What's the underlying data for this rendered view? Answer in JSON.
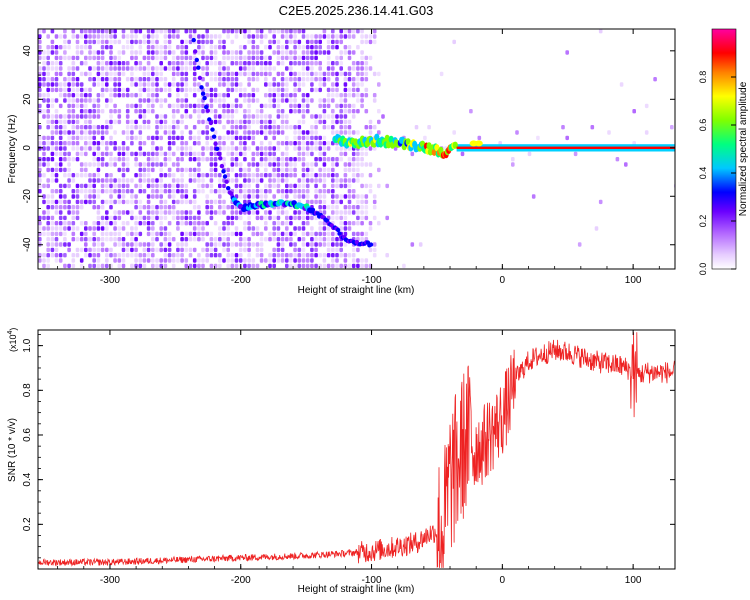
{
  "title": "C2E5.2025.236.14.41.G03",
  "chart_data": [
    {
      "type": "heatmap",
      "title": "C2E5.2025.236.14.41.G03",
      "xlabel": "Height of straight line (km)",
      "ylabel": "Frequency (Hz)",
      "xlim": [
        -355,
        132
      ],
      "ylim": [
        -50,
        49
      ],
      "xticks": [
        -300,
        -200,
        -100,
        0,
        100
      ],
      "yticks": [
        -40,
        -20,
        0,
        20,
        40
      ],
      "colorbar": {
        "label": "Normalized spectral amplitude",
        "ticks": [
          "0.0",
          "0.2",
          "0.4",
          "0.6",
          "0.8"
        ],
        "range": [
          0,
          1
        ],
        "colors": [
          "#ffffff",
          "#e6ccff",
          "#b266ff",
          "#6a00ff",
          "#0000ff",
          "#00c8ff",
          "#00ff80",
          "#80ff00",
          "#ffff00",
          "#ff8000",
          "#ff0000",
          "#ff00a0"
        ]
      },
      "ridge": [
        {
          "x": -236,
          "y": 44
        },
        {
          "x": -230,
          "y": 25
        },
        {
          "x": -224,
          "y": 12
        },
        {
          "x": -218,
          "y": 0
        },
        {
          "x": -213,
          "y": -10
        },
        {
          "x": -208,
          "y": -19
        },
        {
          "x": -200,
          "y": -25
        },
        {
          "x": -190,
          "y": -24
        },
        {
          "x": -175,
          "y": -23
        },
        {
          "x": -160,
          "y": -23
        },
        {
          "x": -148,
          "y": -25
        },
        {
          "x": -140,
          "y": -28
        },
        {
          "x": -130,
          "y": -32
        },
        {
          "x": -120,
          "y": -38
        },
        {
          "x": -100,
          "y": -40
        }
      ],
      "carrier": [
        {
          "x": -128,
          "y": 3
        },
        {
          "x": -110,
          "y": 2
        },
        {
          "x": -95,
          "y": 3
        },
        {
          "x": -80,
          "y": 2
        },
        {
          "x": -65,
          "y": 1
        },
        {
          "x": -50,
          "y": -1
        },
        {
          "x": -42,
          "y": -2
        },
        {
          "x": -35,
          "y": 0
        },
        {
          "x": -25,
          "y": 1
        },
        {
          "x": -15,
          "y": 0
        },
        {
          "x": 0,
          "y": 0
        },
        {
          "x": 60,
          "y": 0
        },
        {
          "x": 132,
          "y": 0
        }
      ]
    },
    {
      "type": "line",
      "xlabel": "Height of straight line (km)",
      "ylabel": "SNR (10 * v/v)",
      "y_multiplier": "(x10^4)",
      "xlim": [
        -355,
        132
      ],
      "ylim": [
        0,
        1.07
      ],
      "xticks": [
        -300,
        -200,
        -100,
        0,
        100
      ],
      "yticks": [
        0.2,
        0.4,
        0.6,
        0.8,
        1.0
      ],
      "line_color": "#ee2222",
      "series": [
        {
          "x": [
            -355,
            -300,
            -250,
            -200,
            -150,
            -120,
            -100,
            -80,
            -65,
            -55,
            -45,
            -40,
            -35,
            -30,
            -25,
            -20,
            -15,
            -10,
            -5,
            0,
            5,
            10,
            20,
            30,
            40,
            50,
            60,
            70,
            80,
            90,
            95,
            100,
            105,
            110,
            120,
            132
          ],
          "values": [
            0.03,
            0.03,
            0.04,
            0.05,
            0.06,
            0.07,
            0.08,
            0.1,
            0.12,
            0.16,
            0.18,
            0.4,
            0.45,
            0.55,
            0.6,
            0.55,
            0.55,
            0.6,
            0.63,
            0.68,
            0.75,
            0.85,
            0.93,
            0.96,
            0.98,
            0.97,
            0.95,
            0.93,
            0.92,
            0.91,
            0.9,
            0.88,
            0.87,
            0.88,
            0.88,
            0.88
          ]
        }
      ]
    }
  ]
}
